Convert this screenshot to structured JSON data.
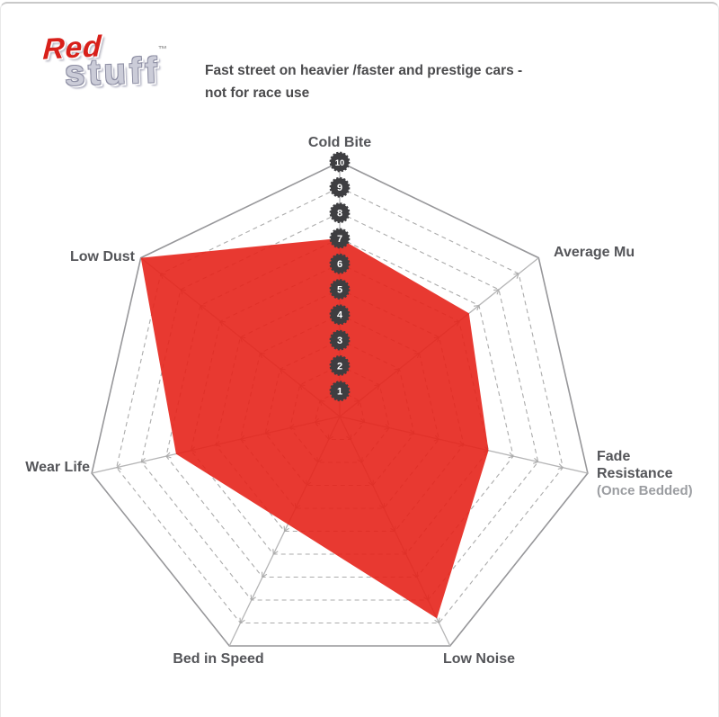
{
  "logo": {
    "word1": "Red",
    "word2": "stuff",
    "trademark": "™",
    "red_color": "#d8201a",
    "grey_color": "#cbccd8"
  },
  "subtitle": {
    "line1": "Fast street on heavier /faster and prestige cars -",
    "line2": "not for race use"
  },
  "chart_data": {
    "type": "radar",
    "categories": [
      "Cold Bite",
      "Average Mu",
      "Fade Resistance (Once Bedded)",
      "Low Noise",
      "Bed in Speed",
      "Wear Life",
      "Low Dust"
    ],
    "values": [
      7,
      6.5,
      6,
      8.8,
      4.7,
      6.6,
      10
    ],
    "scale_min": 1,
    "scale_max": 10,
    "scale_ticks": [
      "10",
      "9",
      "8",
      "7",
      "6",
      "5",
      "4",
      "3",
      "2",
      "1"
    ],
    "axis_count": 7,
    "fill_color": "#e5231b",
    "fill_opacity": 0.9,
    "grid_color": "#ababab",
    "outer_ring_color": "#97979a",
    "axis_line_color": "#b5b5b6",
    "badge_color": "#3e3e41",
    "badge_text_color": "#ffffff",
    "grid_style": "dashed rings, solid outer heptagon, radial axes with outward tick chevrons",
    "legend_position": "none",
    "title": "Fast street on heavier /faster and prestige cars - not for race use"
  },
  "labels": {
    "cold_bite": "Cold Bite",
    "average_mu": "Average Mu",
    "fade_line1": "Fade",
    "fade_line2": "Resistance",
    "fade_line3": "(Once Bedded)",
    "low_noise": "Low Noise",
    "bed_in_speed": "Bed in Speed",
    "wear_life": "Wear Life",
    "low_dust": "Low Dust"
  }
}
